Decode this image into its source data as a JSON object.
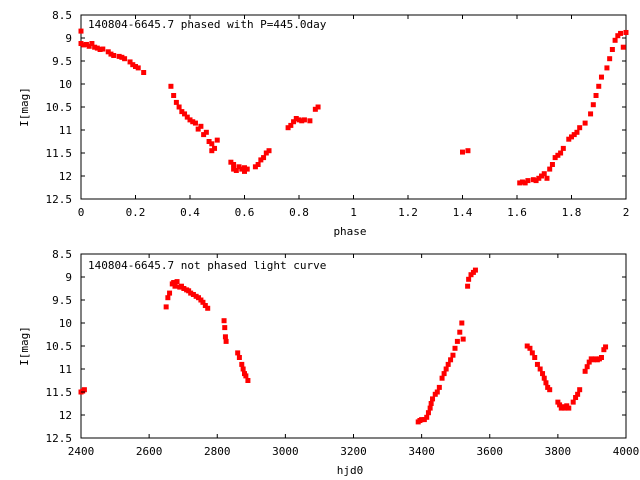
{
  "chart_data": [
    {
      "type": "scatter",
      "title": "140804-6645.7 phased with P=445.0day",
      "xlabel": "phase",
      "ylabel": "I[mag]",
      "xlim": [
        0,
        2
      ],
      "ylim": [
        12.5,
        8.5
      ],
      "y_inverted": true,
      "grid": false,
      "marker_color": "#ff0000",
      "xticks": [
        0,
        0.2,
        0.4,
        0.6,
        0.8,
        1,
        1.2,
        1.4,
        1.6,
        1.8,
        2
      ],
      "xtick_labels": [
        "0",
        "0.2",
        "0.4",
        "0.6",
        "0.8",
        "1",
        "1.2",
        "1.4",
        "1.6",
        "1.8",
        "2"
      ],
      "yticks": [
        8.5,
        9,
        9.5,
        10,
        10.5,
        11,
        11.5,
        12,
        12.5
      ],
      "ytick_labels": [
        "8.5",
        "9",
        "9.5",
        "10",
        "10.5",
        "11",
        "11.5",
        "12",
        "12.5"
      ],
      "points": [
        [
          0.0,
          8.85
        ],
        [
          0.0,
          9.12
        ],
        [
          0.01,
          9.15
        ],
        [
          0.02,
          9.14
        ],
        [
          0.03,
          9.18
        ],
        [
          0.04,
          9.12
        ],
        [
          0.05,
          9.2
        ],
        [
          0.06,
          9.22
        ],
        [
          0.07,
          9.25
        ],
        [
          0.08,
          9.24
        ],
        [
          0.1,
          9.3
        ],
        [
          0.11,
          9.35
        ],
        [
          0.12,
          9.38
        ],
        [
          0.14,
          9.4
        ],
        [
          0.15,
          9.42
        ],
        [
          0.16,
          9.45
        ],
        [
          0.18,
          9.52
        ],
        [
          0.19,
          9.58
        ],
        [
          0.2,
          9.62
        ],
        [
          0.21,
          9.65
        ],
        [
          0.23,
          9.75
        ],
        [
          0.33,
          10.05
        ],
        [
          0.34,
          10.25
        ],
        [
          0.35,
          10.4
        ],
        [
          0.36,
          10.5
        ],
        [
          0.37,
          10.6
        ],
        [
          0.38,
          10.65
        ],
        [
          0.39,
          10.72
        ],
        [
          0.4,
          10.78
        ],
        [
          0.41,
          10.82
        ],
        [
          0.42,
          10.85
        ],
        [
          0.43,
          10.98
        ],
        [
          0.44,
          10.92
        ],
        [
          0.45,
          11.1
        ],
        [
          0.46,
          11.05
        ],
        [
          0.47,
          11.25
        ],
        [
          0.48,
          11.3
        ],
        [
          0.48,
          11.45
        ],
        [
          0.49,
          11.4
        ],
        [
          0.5,
          11.22
        ],
        [
          0.55,
          11.7
        ],
        [
          0.56,
          11.75
        ],
        [
          0.56,
          11.85
        ],
        [
          0.57,
          11.88
        ],
        [
          0.58,
          11.8
        ],
        [
          0.59,
          11.85
        ],
        [
          0.6,
          11.82
        ],
        [
          0.6,
          11.9
        ],
        [
          0.61,
          11.85
        ],
        [
          0.64,
          11.8
        ],
        [
          0.65,
          11.75
        ],
        [
          0.66,
          11.65
        ],
        [
          0.67,
          11.6
        ],
        [
          0.68,
          11.5
        ],
        [
          0.69,
          11.45
        ],
        [
          0.76,
          10.95
        ],
        [
          0.77,
          10.9
        ],
        [
          0.78,
          10.82
        ],
        [
          0.79,
          10.75
        ],
        [
          0.8,
          10.78
        ],
        [
          0.81,
          10.8
        ],
        [
          0.82,
          10.78
        ],
        [
          0.84,
          10.8
        ],
        [
          0.86,
          10.55
        ],
        [
          0.87,
          10.5
        ],
        [
          1.4,
          11.48
        ],
        [
          1.42,
          11.45
        ],
        [
          1.61,
          12.15
        ],
        [
          1.62,
          12.13
        ],
        [
          1.63,
          12.15
        ],
        [
          1.64,
          12.1
        ],
        [
          1.66,
          12.08
        ],
        [
          1.67,
          12.1
        ],
        [
          1.68,
          12.05
        ],
        [
          1.69,
          12.0
        ],
        [
          1.7,
          11.95
        ],
        [
          1.71,
          12.05
        ],
        [
          1.72,
          11.85
        ],
        [
          1.73,
          11.75
        ],
        [
          1.74,
          11.6
        ],
        [
          1.75,
          11.55
        ],
        [
          1.76,
          11.5
        ],
        [
          1.77,
          11.4
        ],
        [
          1.79,
          11.2
        ],
        [
          1.8,
          11.15
        ],
        [
          1.81,
          11.1
        ],
        [
          1.82,
          11.05
        ],
        [
          1.83,
          10.95
        ],
        [
          1.85,
          10.85
        ],
        [
          1.87,
          10.65
        ],
        [
          1.88,
          10.45
        ],
        [
          1.89,
          10.25
        ],
        [
          1.9,
          10.05
        ],
        [
          1.91,
          9.85
        ],
        [
          1.93,
          9.65
        ],
        [
          1.94,
          9.45
        ],
        [
          1.95,
          9.25
        ],
        [
          1.96,
          9.05
        ],
        [
          1.97,
          8.95
        ],
        [
          1.98,
          8.9
        ],
        [
          1.99,
          9.2
        ],
        [
          2.0,
          8.88
        ]
      ]
    },
    {
      "type": "scatter",
      "title": "140804-6645.7 not phased light curve",
      "xlabel": "hjd0",
      "ylabel": "I[mag]",
      "xlim": [
        2400,
        4000
      ],
      "ylim": [
        12.5,
        8.5
      ],
      "y_inverted": true,
      "grid": false,
      "marker_color": "#ff0000",
      "xticks": [
        2400,
        2600,
        2800,
        3000,
        3200,
        3400,
        3600,
        3800,
        4000
      ],
      "xtick_labels": [
        "2400",
        "2600",
        "2800",
        "3000",
        "3200",
        "3400",
        "3600",
        "3800",
        "4000"
      ],
      "yticks": [
        8.5,
        9,
        9.5,
        10,
        10.5,
        11,
        11.5,
        12,
        12.5
      ],
      "ytick_labels": [
        "8.5",
        "9",
        "9.5",
        "10",
        "10.5",
        "11",
        "11.5",
        "12",
        "12.5"
      ],
      "points": [
        [
          2400,
          11.5
        ],
        [
          2405,
          11.48
        ],
        [
          2410,
          11.45
        ],
        [
          2650,
          9.65
        ],
        [
          2655,
          9.45
        ],
        [
          2660,
          9.35
        ],
        [
          2668,
          9.15
        ],
        [
          2672,
          9.12
        ],
        [
          2676,
          9.2
        ],
        [
          2682,
          9.1
        ],
        [
          2690,
          9.22
        ],
        [
          2695,
          9.2
        ],
        [
          2702,
          9.25
        ],
        [
          2710,
          9.28
        ],
        [
          2716,
          9.3
        ],
        [
          2722,
          9.35
        ],
        [
          2730,
          9.38
        ],
        [
          2738,
          9.42
        ],
        [
          2745,
          9.45
        ],
        [
          2752,
          9.5
        ],
        [
          2758,
          9.55
        ],
        [
          2765,
          9.62
        ],
        [
          2772,
          9.68
        ],
        [
          2820,
          9.95
        ],
        [
          2822,
          10.1
        ],
        [
          2824,
          10.3
        ],
        [
          2826,
          10.4
        ],
        [
          2860,
          10.65
        ],
        [
          2865,
          10.75
        ],
        [
          2872,
          10.9
        ],
        [
          2876,
          11.0
        ],
        [
          2880,
          11.1
        ],
        [
          2884,
          11.15
        ],
        [
          2890,
          11.25
        ],
        [
          3390,
          12.15
        ],
        [
          3395,
          12.12
        ],
        [
          3400,
          12.1
        ],
        [
          3408,
          12.1
        ],
        [
          3415,
          12.05
        ],
        [
          3420,
          11.95
        ],
        [
          3425,
          11.85
        ],
        [
          3428,
          11.75
        ],
        [
          3432,
          11.65
        ],
        [
          3440,
          11.55
        ],
        [
          3446,
          11.5
        ],
        [
          3452,
          11.4
        ],
        [
          3460,
          11.2
        ],
        [
          3466,
          11.1
        ],
        [
          3472,
          11.0
        ],
        [
          3478,
          10.9
        ],
        [
          3485,
          10.8
        ],
        [
          3492,
          10.7
        ],
        [
          3498,
          10.55
        ],
        [
          3505,
          10.4
        ],
        [
          3512,
          10.2
        ],
        [
          3518,
          10.0
        ],
        [
          3522,
          10.35
        ],
        [
          3535,
          9.2
        ],
        [
          3538,
          9.05
        ],
        [
          3545,
          8.95
        ],
        [
          3552,
          8.9
        ],
        [
          3558,
          8.85
        ],
        [
          3710,
          10.5
        ],
        [
          3718,
          10.55
        ],
        [
          3725,
          10.65
        ],
        [
          3732,
          10.75
        ],
        [
          3740,
          10.9
        ],
        [
          3748,
          11.0
        ],
        [
          3755,
          11.1
        ],
        [
          3760,
          11.2
        ],
        [
          3765,
          11.3
        ],
        [
          3770,
          11.4
        ],
        [
          3776,
          11.45
        ],
        [
          3800,
          11.72
        ],
        [
          3805,
          11.78
        ],
        [
          3810,
          11.85
        ],
        [
          3815,
          11.82
        ],
        [
          3820,
          11.85
        ],
        [
          3826,
          11.8
        ],
        [
          3832,
          11.85
        ],
        [
          3845,
          11.72
        ],
        [
          3852,
          11.62
        ],
        [
          3858,
          11.55
        ],
        [
          3864,
          11.45
        ],
        [
          3880,
          11.05
        ],
        [
          3886,
          10.95
        ],
        [
          3892,
          10.85
        ],
        [
          3898,
          10.78
        ],
        [
          3904,
          10.8
        ],
        [
          3910,
          10.78
        ],
        [
          3916,
          10.8
        ],
        [
          3922,
          10.78
        ],
        [
          3928,
          10.75
        ],
        [
          3935,
          10.58
        ],
        [
          3940,
          10.52
        ]
      ]
    }
  ]
}
